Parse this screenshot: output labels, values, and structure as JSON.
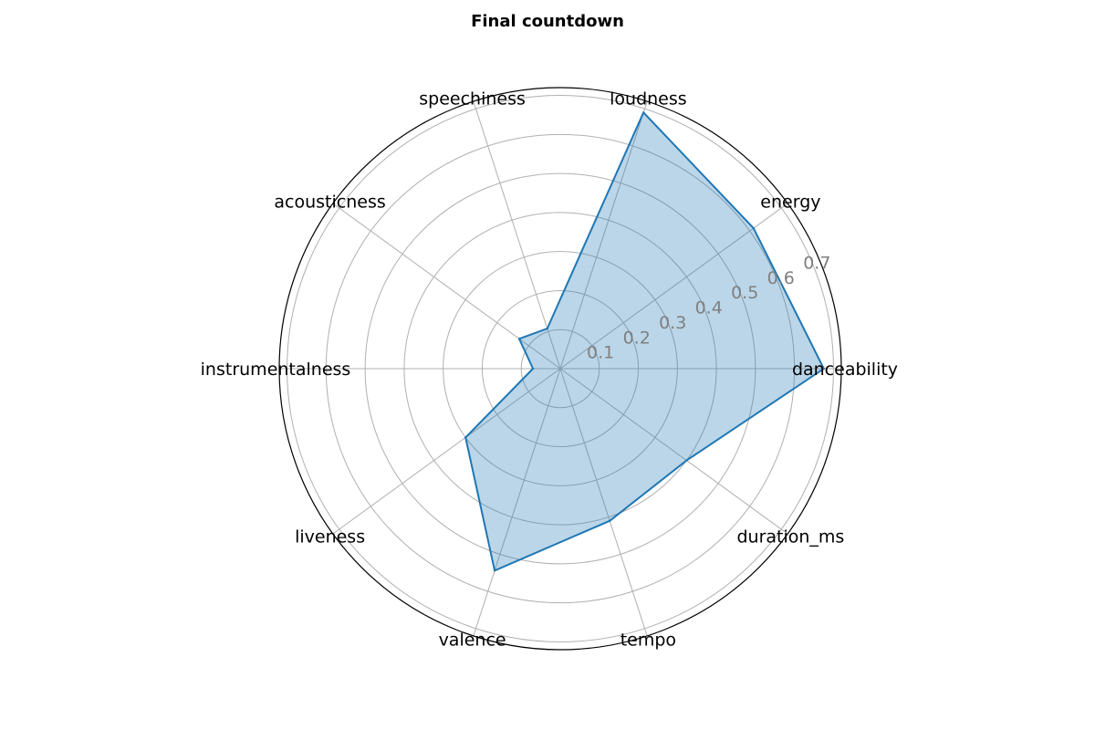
{
  "chart_data": {
    "type": "radar",
    "title": "Final countdown",
    "categories": [
      "danceability",
      "energy",
      "loudness",
      "speechiness",
      "acousticness",
      "instrumentalness",
      "liveness",
      "valence",
      "tempo",
      "duration_ms"
    ],
    "series": [
      {
        "values": [
          0.675,
          0.612,
          0.69,
          0.108,
          0.13,
          0.07,
          0.3,
          0.544,
          0.41,
          0.4
        ],
        "line_color": "#1f77b4",
        "fill_color": "#1f77b4",
        "fill_opacity": 0.3
      }
    ],
    "rticks": [
      0.1,
      0.2,
      0.3,
      0.4,
      0.5,
      0.6,
      0.7
    ],
    "rticks_labels": [
      "0.1",
      "0.2",
      "0.3",
      "0.4",
      "0.5",
      "0.6",
      "0.7"
    ],
    "rlim": [
      0,
      0.72
    ],
    "grid": true,
    "legend": "none",
    "colors": {
      "grid": "#b0b0b0",
      "frame": "#000000",
      "tick_label": "#808080"
    }
  }
}
